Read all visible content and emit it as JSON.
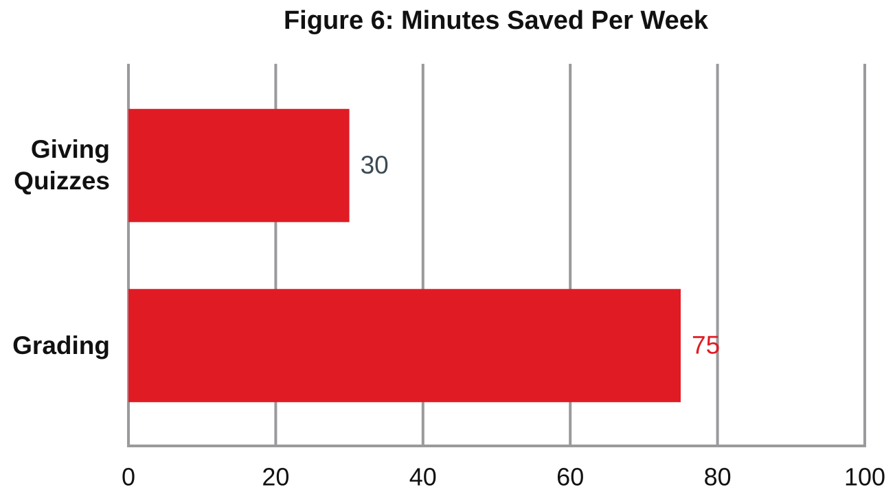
{
  "chart_data": {
    "type": "hbar",
    "title": "Figure 6: Minutes Saved Per Week",
    "categories": [
      "Giving Quizzes",
      "Grading"
    ],
    "values": [
      30,
      75
    ],
    "color": "#e01b24",
    "value_label_colors": [
      "#3b4a54",
      "#e01b24"
    ],
    "xlim": [
      0,
      100
    ],
    "xticks": [
      0,
      20,
      40,
      60,
      80,
      100
    ],
    "grid": true
  }
}
